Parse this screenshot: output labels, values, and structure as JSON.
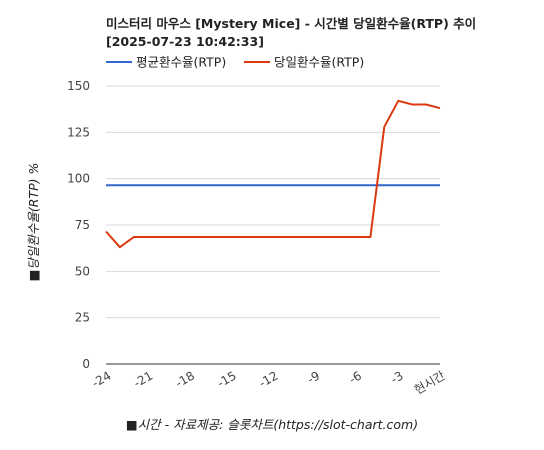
{
  "title_line1": "미스터리 마우스 [Mystery Mice] - 시간별 당일환수율(RTP) 추이",
  "title_line2": "[2025-07-23 10:42:33]",
  "chart_data": {
    "type": "line",
    "title": "미스터리 마우스 [Mystery Mice] - 시간별 당일환수율(RTP) 추이",
    "subtitle": "[2025-07-23 10:42:33]",
    "xlabel": "■시간 - 자료제공: 슬롯차트(https://slot-chart.com)",
    "ylabel": "■당일환수율(RTP) %",
    "ylim": [
      0,
      150
    ],
    "yticks": [
      0,
      25,
      50,
      75,
      100,
      125,
      150
    ],
    "xlim": [
      -24,
      0
    ],
    "xtick_values": [
      -24,
      -21,
      -18,
      -15,
      -12,
      -9,
      -6,
      -3,
      0
    ],
    "xtick_labels": [
      "-24",
      "-21",
      "-18",
      "-15",
      "-12",
      "-9",
      "-6",
      "-3",
      "현시간"
    ],
    "grid": true,
    "legend_position": "top-left",
    "series": [
      {
        "name": "평균환수율(RTP)",
        "color": "#3366cc",
        "x": [
          -24,
          0
        ],
        "values": [
          96.5,
          96.5
        ]
      },
      {
        "name": "당일환수율(RTP)",
        "color": "#dc3912",
        "x": [
          -24,
          -23,
          -22,
          -21,
          -20,
          -19,
          -18,
          -17,
          -16,
          -15,
          -14,
          -13,
          -12,
          -11,
          -10,
          -9,
          -8,
          -7,
          -6,
          -5,
          -4,
          -3,
          -2,
          -1,
          0
        ],
        "values": [
          71.5,
          63,
          68.5,
          68.5,
          68.5,
          68.5,
          68.5,
          68.5,
          68.5,
          68.5,
          68.5,
          68.5,
          68.5,
          68.5,
          68.5,
          68.5,
          68.5,
          68.5,
          68.5,
          68.5,
          128,
          142,
          140,
          140,
          138
        ]
      }
    ]
  }
}
